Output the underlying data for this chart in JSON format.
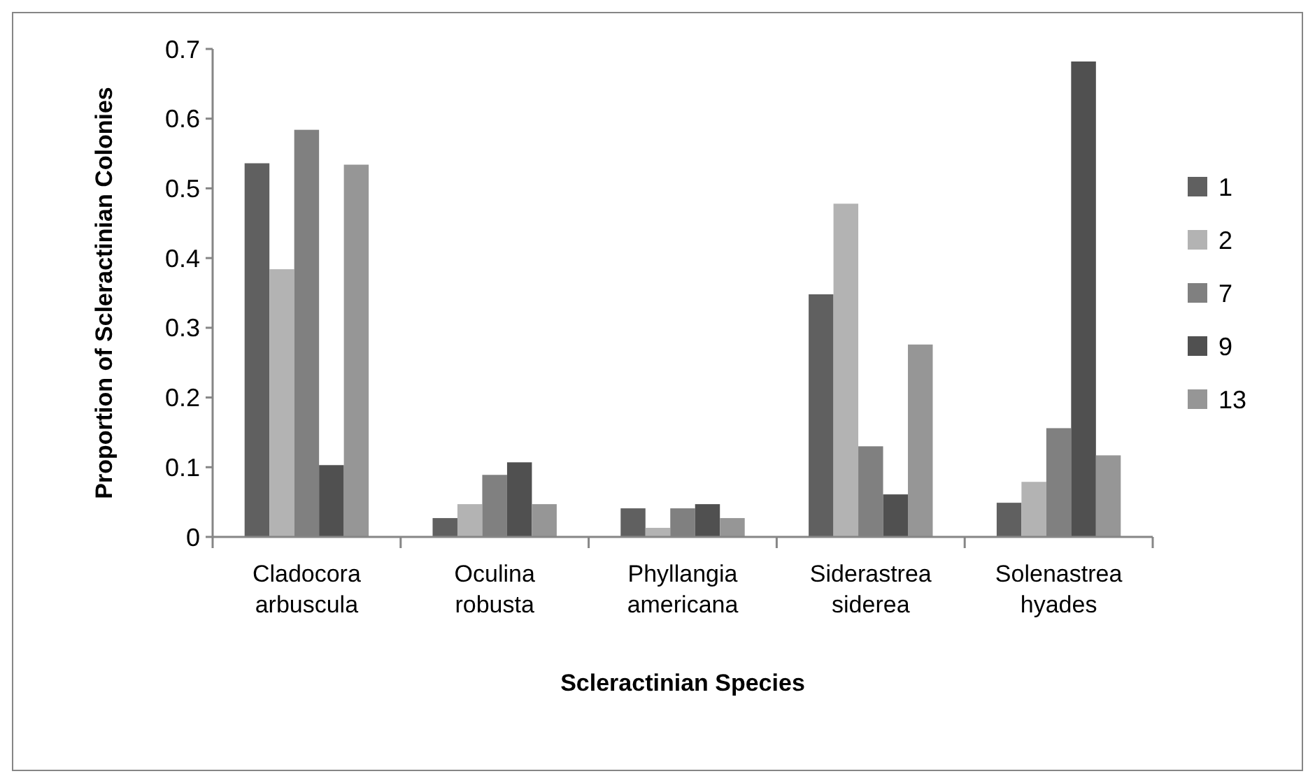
{
  "chart_data": {
    "type": "bar",
    "xlabel": "Scleractinian Species",
    "ylabel": "Proportion of Scleractinian Colonies",
    "categories": [
      "Cladocora arbuscula",
      "Oculina robusta",
      "Phyllangia americana",
      "Siderastrea siderea",
      "Solenastrea hyades"
    ],
    "series": [
      {
        "name": "1",
        "color": "#606060",
        "values": [
          0.536,
          0.027,
          0.041,
          0.348,
          0.049
        ]
      },
      {
        "name": "2",
        "color": "#b3b3b3",
        "values": [
          0.384,
          0.047,
          0.013,
          0.478,
          0.079
        ]
      },
      {
        "name": "7",
        "color": "#808080",
        "values": [
          0.584,
          0.089,
          0.041,
          0.13,
          0.156
        ]
      },
      {
        "name": "9",
        "color": "#505050",
        "values": [
          0.103,
          0.107,
          0.047,
          0.061,
          0.682
        ]
      },
      {
        "name": "13",
        "color": "#969696",
        "values": [
          0.534,
          0.047,
          0.027,
          0.276,
          0.117
        ]
      }
    ],
    "ylim": [
      0,
      0.7
    ],
    "yticks": [
      0,
      0.1,
      0.2,
      0.3,
      0.4,
      0.5,
      0.6,
      0.7
    ],
    "grid": false,
    "legend": "right"
  }
}
